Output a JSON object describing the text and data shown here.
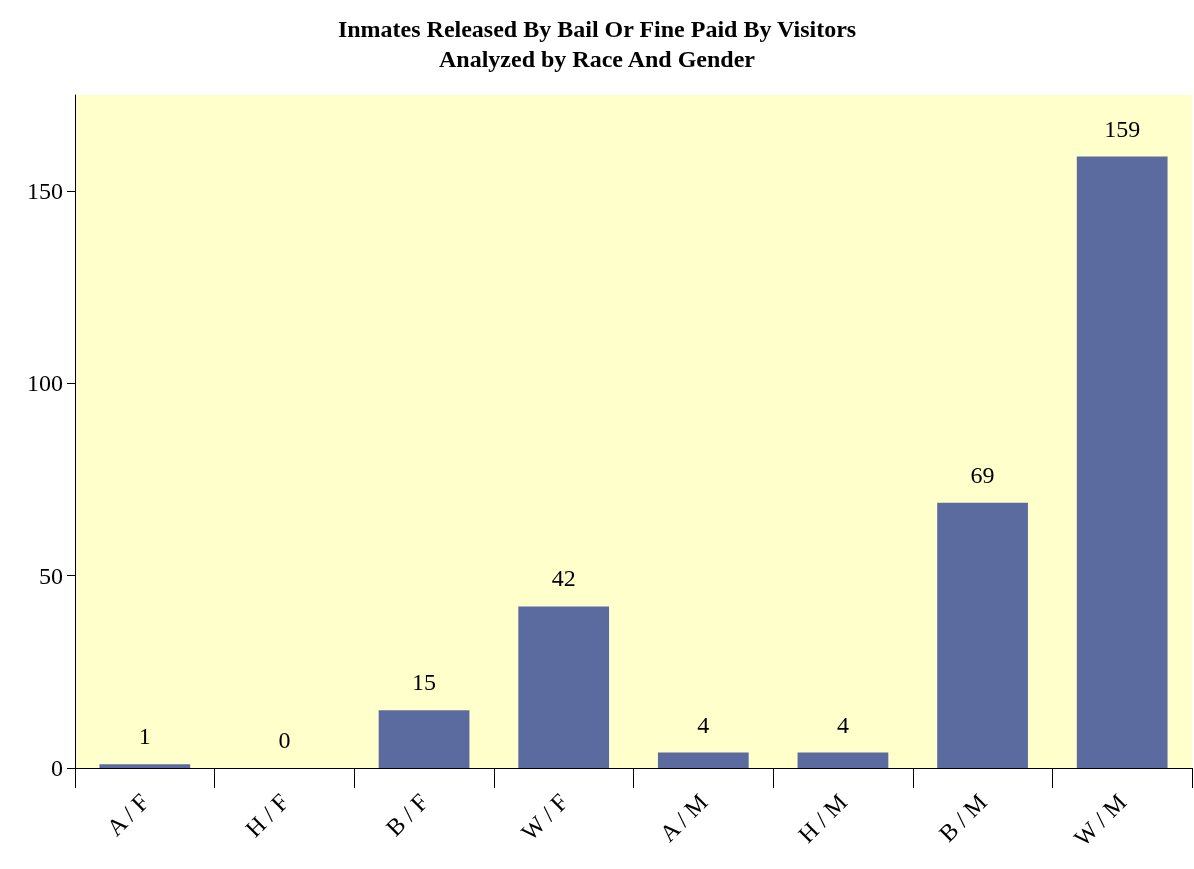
{
  "chart_data": {
    "type": "bar",
    "title": "Inmates Released By Bail Or Fine Paid By Visitors",
    "subtitle": "Analyzed by Race And Gender",
    "categories": [
      "A / F",
      "H / F",
      "B / F",
      "W / F",
      "A / M",
      "H / M",
      "B / M",
      "W / M"
    ],
    "values": [
      1,
      0,
      15,
      42,
      4,
      4,
      69,
      159
    ],
    "color": "#5b6ba0",
    "ylim": [
      0,
      175
    ],
    "yticks": [
      0,
      50,
      100,
      150
    ],
    "grid": false,
    "data_labels": true
  }
}
